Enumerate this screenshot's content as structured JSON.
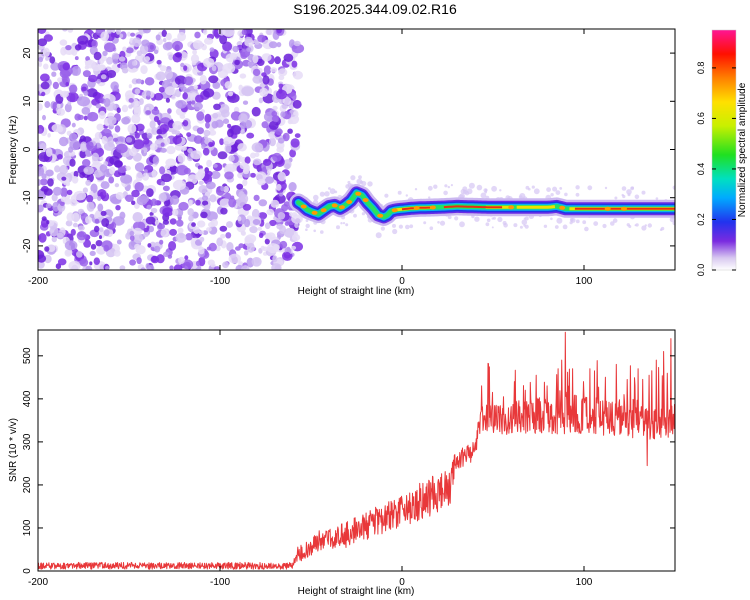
{
  "figure": {
    "title": "S196.2025.344.09.02.R16"
  },
  "colors": {
    "snr_line": "#e8383a",
    "axis": "#000000",
    "background": "#ffffff"
  },
  "chart_data": [
    {
      "type": "heatmap",
      "xlabel": "Height of straight line (km)",
      "ylabel": "Frequency (Hz)",
      "xlim": [
        -200,
        150
      ],
      "ylim": [
        -25,
        25
      ],
      "xticks": [
        -200,
        -100,
        0,
        100
      ],
      "yticks": [
        -20,
        -10,
        0,
        10,
        20
      ],
      "noise_region_x": [
        -200,
        -57
      ],
      "ridge": {
        "x": [
          -57,
          -55,
          -52,
          -49,
          -46,
          -43,
          -40,
          -37,
          -34,
          -31,
          -28,
          -25,
          -22,
          -19,
          -16,
          -13,
          -10,
          -8,
          -6,
          -3,
          0,
          5,
          10,
          20,
          30,
          40,
          50,
          60,
          70,
          80,
          85,
          90,
          100,
          110,
          120,
          130,
          140,
          150
        ],
        "freq": [
          -11,
          -11.5,
          -12.5,
          -13,
          -13.4,
          -12.6,
          -11.8,
          -11.6,
          -12.2,
          -11.5,
          -10.6,
          -9,
          -9.5,
          -11,
          -12.2,
          -13.6,
          -14,
          -13.6,
          -12.8,
          -12.5,
          -12.4,
          -12.2,
          -12.1,
          -12,
          -11.8,
          -11.9,
          -12,
          -12,
          -12,
          -12,
          -11.8,
          -12.3,
          -12.3,
          -12.3,
          -12.3,
          -12.3,
          -12.3,
          -12.3
        ]
      },
      "colorbar": {
        "label": "Normalized spectral amplitude",
        "range": [
          0,
          0.95
        ],
        "ticks": [
          0.0,
          0.2,
          0.4,
          0.6,
          0.8
        ],
        "tick_labels": [
          "0.0",
          "0.2",
          "0.4",
          "0.6",
          "0.8"
        ]
      }
    },
    {
      "type": "line",
      "xlabel": "Height of straight line (km)",
      "ylabel": "SNR (10 * v/v)",
      "xlim": [
        -200,
        150
      ],
      "ylim": [
        0,
        560
      ],
      "xticks": [
        -200,
        -100,
        0,
        100
      ],
      "yticks": [
        0,
        100,
        200,
        300,
        400,
        500
      ],
      "series": [
        {
          "name": "SNR",
          "x": [
            -200,
            -150,
            -100,
            -60,
            -57,
            -45,
            -30,
            -15,
            0,
            10,
            20,
            27,
            29,
            40,
            43,
            45,
            60,
            80,
            100,
            120,
            140,
            150
          ],
          "mean": [
            12,
            12,
            12,
            12,
            40,
            70,
            85,
            115,
            140,
            160,
            185,
            200,
            255,
            280,
            350,
            355,
            355,
            360,
            365,
            355,
            350,
            355
          ],
          "amp": [
            8,
            8,
            8,
            8,
            20,
            25,
            30,
            35,
            40,
            45,
            50,
            50,
            20,
            25,
            25,
            30,
            40,
            45,
            45,
            45,
            45,
            45
          ]
        }
      ],
      "spikes": [
        {
          "x": 44,
          "y": 430
        },
        {
          "x": 50,
          "y": 415
        },
        {
          "x": 56,
          "y": 405
        },
        {
          "x": 62,
          "y": 440
        },
        {
          "x": 68,
          "y": 420
        },
        {
          "x": 74,
          "y": 455
        },
        {
          "x": 80,
          "y": 430
        },
        {
          "x": 86,
          "y": 470
        },
        {
          "x": 88,
          "y": 490
        },
        {
          "x": 90,
          "y": 555
        },
        {
          "x": 94,
          "y": 470
        },
        {
          "x": 100,
          "y": 440
        },
        {
          "x": 106,
          "y": 465
        },
        {
          "x": 112,
          "y": 450
        },
        {
          "x": 118,
          "y": 480
        },
        {
          "x": 124,
          "y": 445
        },
        {
          "x": 130,
          "y": 470
        },
        {
          "x": 136,
          "y": 455
        },
        {
          "x": 140,
          "y": 490
        },
        {
          "x": 144,
          "y": 510
        },
        {
          "x": 148,
          "y": 540
        },
        {
          "x": 135,
          "y": 245
        }
      ]
    }
  ]
}
